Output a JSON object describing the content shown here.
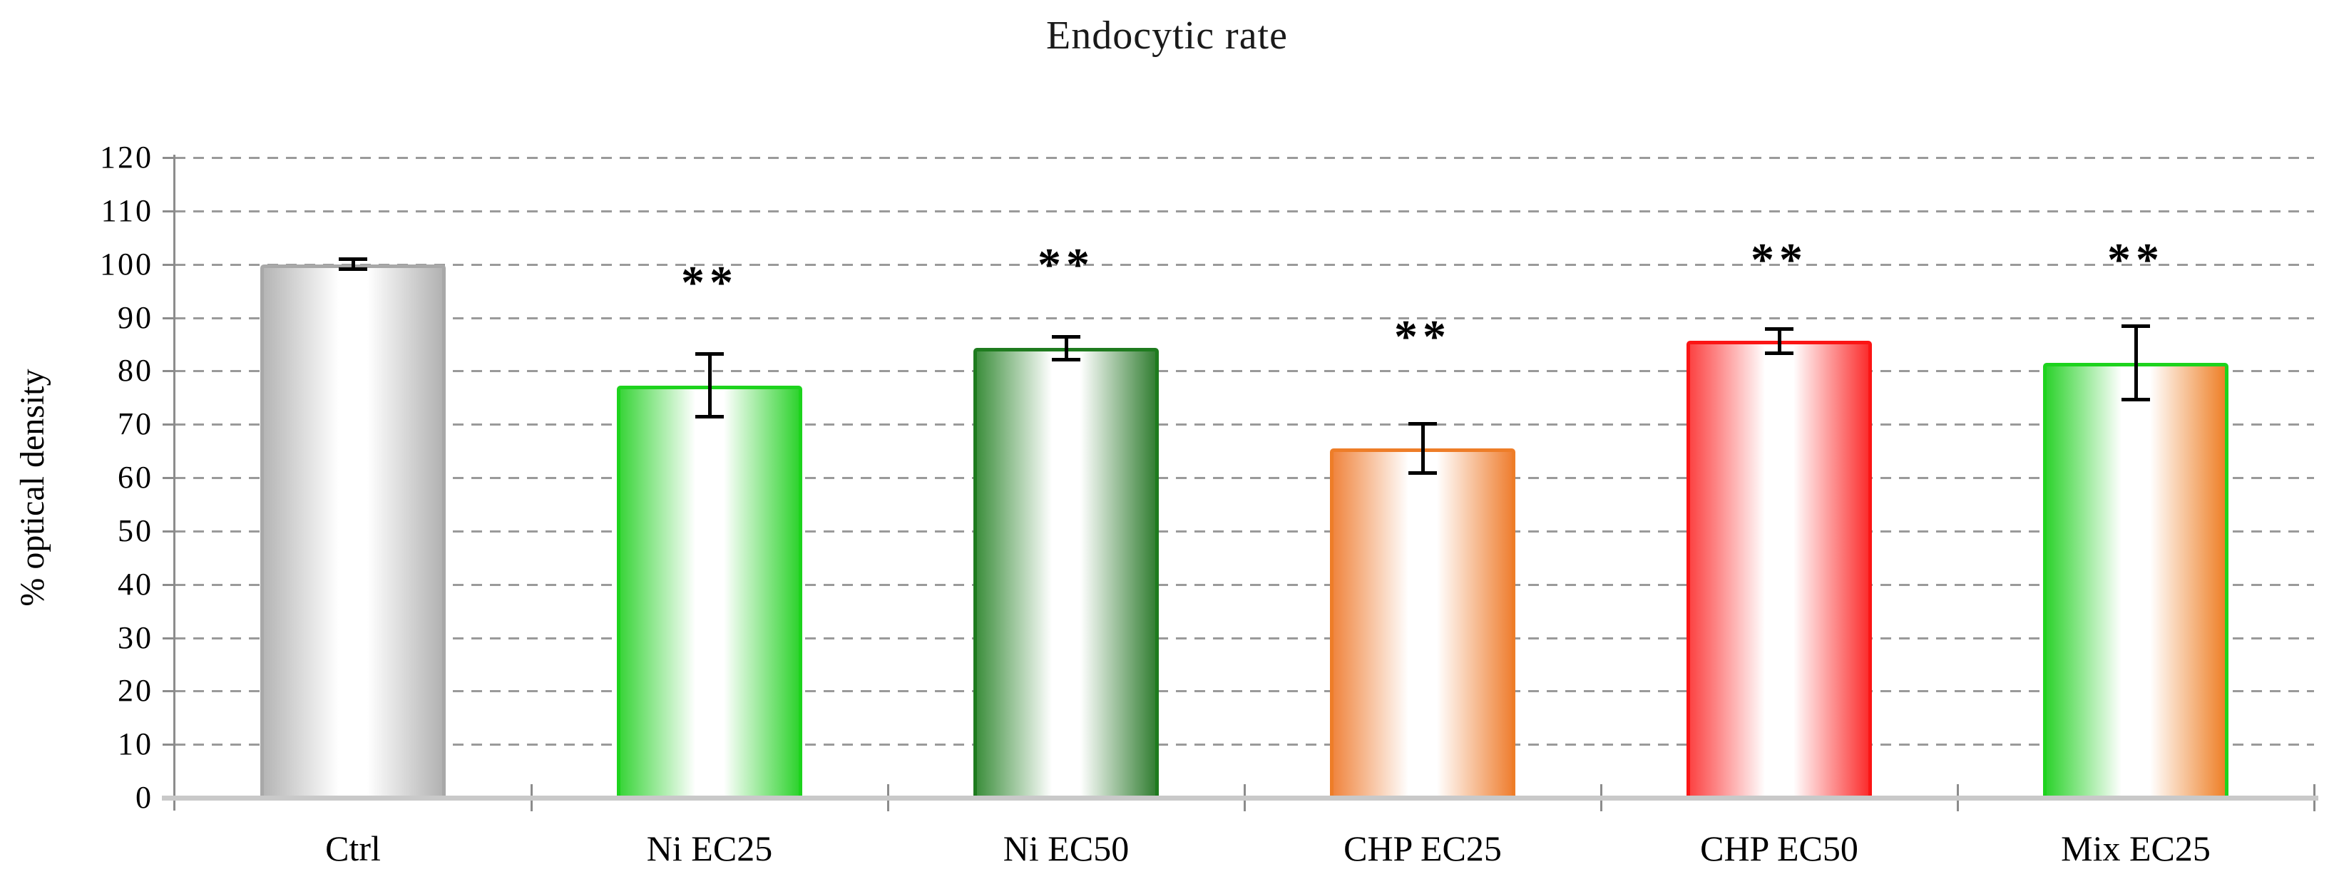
{
  "title": "Endocytic rate",
  "y_axis_label": "% optical density",
  "chart_data": {
    "type": "bar",
    "title": "Endocytic rate",
    "xlabel": "",
    "ylabel": "% optical density",
    "ylim": [
      0,
      120
    ],
    "ytick_step": 10,
    "grid": "horizontal-dashed",
    "legend_position": "none",
    "background": "#ffffff",
    "categories": [
      "Ctrl",
      "Ni EC25",
      "Ni EC50",
      "CHP EC25",
      "CHP EC50",
      "Mix EC25"
    ],
    "values": [
      100,
      77.3,
      84.3,
      65.5,
      85.6,
      81.5
    ],
    "error_bars": [
      1,
      6,
      2.2,
      4.7,
      2.3,
      7
    ],
    "significance_labels": [
      "",
      "**",
      "**",
      "**",
      "**",
      "**"
    ],
    "significance_y": [
      null,
      97.7,
      101,
      87.5,
      102,
      102
    ],
    "error_bar_color": "#000000",
    "gridline_color": "#9a9a9a",
    "axis_color": "#8c8c8c",
    "baseline_color": "#c9c9c9",
    "bar_styles": [
      {
        "name": "silver-cylinder",
        "border": "#a8a8a8",
        "left": "#b5b5b5",
        "right": "#b2b2b2"
      },
      {
        "name": "bright-green-cylinder",
        "border": "#1dd31d",
        "left": "#3ad53a",
        "right": "#2fd32f"
      },
      {
        "name": "dark-green-cylinder",
        "border": "#1e7b1e",
        "left": "#3d8f3d",
        "right": "#347f34"
      },
      {
        "name": "orange-cylinder",
        "border": "#ee7d28",
        "left": "#f0853f",
        "right": "#ef8033"
      },
      {
        "name": "red-cylinder",
        "border": "#fb1515",
        "left": "#fc4343",
        "right": "#fb2e2e"
      },
      {
        "name": "green-orange-cylinder",
        "border": "#1dd31d",
        "left": "#2ed32e",
        "right": "#ee8028"
      }
    ]
  }
}
